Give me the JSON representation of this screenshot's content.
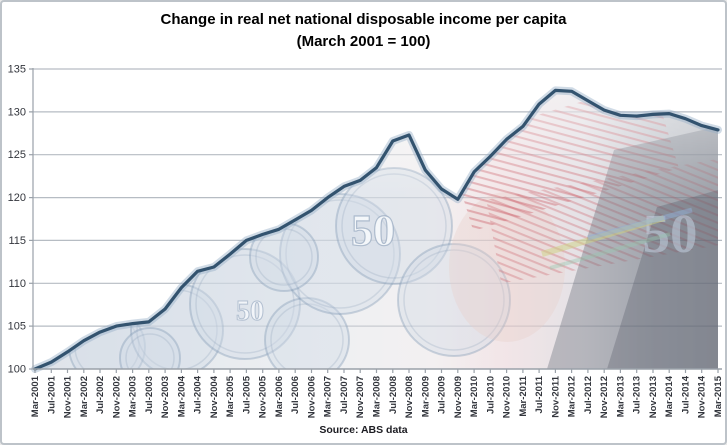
{
  "chart": {
    "title_line1": "Change in real net national disposable income per capita",
    "title_line2": "(March 2001 = 100)",
    "source": "Source: ABS data"
  },
  "colors": {
    "line": "#33536F",
    "line_halo": "rgba(150,175,200,0.45)",
    "grid": "#B6BCC3",
    "axis": "#9AA1A9",
    "tick_label": "#33363D",
    "title": "#000000",
    "watermark_coin": "rgba(120,145,175,0.35)",
    "watermark_note_red": "#CF6B74",
    "watermark_wallet": "rgba(95,100,112,0.35)"
  },
  "chart_data": {
    "type": "line",
    "title": "Change in real net national disposable income per capita (March 2001 = 100)",
    "xlabel": "",
    "ylabel": "",
    "ylim": [
      100,
      135
    ],
    "yticks": [
      100,
      105,
      110,
      115,
      120,
      125,
      130,
      135
    ],
    "grid": true,
    "legend_position": "none",
    "x": [
      "Mar-2001",
      "Jul-2001",
      "Nov-2001",
      "Mar-2002",
      "Jul-2002",
      "Nov-2002",
      "Mar-2003",
      "Jul-2003",
      "Nov-2003",
      "Mar-2004",
      "Jul-2004",
      "Nov-2004",
      "Mar-2005",
      "Jul-2005",
      "Nov-2005",
      "Mar-2006",
      "Jul-2006",
      "Nov-2006",
      "Mar-2007",
      "Jul-2007",
      "Nov-2007",
      "Mar-2008",
      "Jul-2008",
      "Nov-2008",
      "Mar-2009",
      "Jul-2009",
      "Nov-2009",
      "Mar-2010",
      "Jul-2010",
      "Nov-2010",
      "Mar-2011",
      "Jul-2011",
      "Nov-2011",
      "Mar-2012",
      "Jul-2012",
      "Nov-2012",
      "Mar-2013",
      "Jul-2013",
      "Nov-2013",
      "Mar-2014",
      "Jul-2014",
      "Nov-2014",
      "Mar-2015"
    ],
    "values": [
      100.0,
      100.8,
      102.0,
      103.3,
      104.3,
      105.0,
      105.3,
      105.5,
      107.0,
      109.5,
      111.4,
      111.9,
      113.4,
      115.0,
      115.7,
      116.3,
      117.4,
      118.5,
      120.0,
      121.3,
      122.0,
      123.5,
      126.6,
      127.3,
      123.2,
      121.0,
      119.8,
      123.0,
      124.8,
      126.8,
      128.3,
      130.9,
      132.5,
      132.4,
      131.3,
      130.2,
      129.6,
      129.5,
      129.7,
      129.8,
      129.2,
      128.4,
      127.9
    ],
    "area_fill": "faded photo watermark of coins, red banknotes and a dark wallet under the line"
  }
}
